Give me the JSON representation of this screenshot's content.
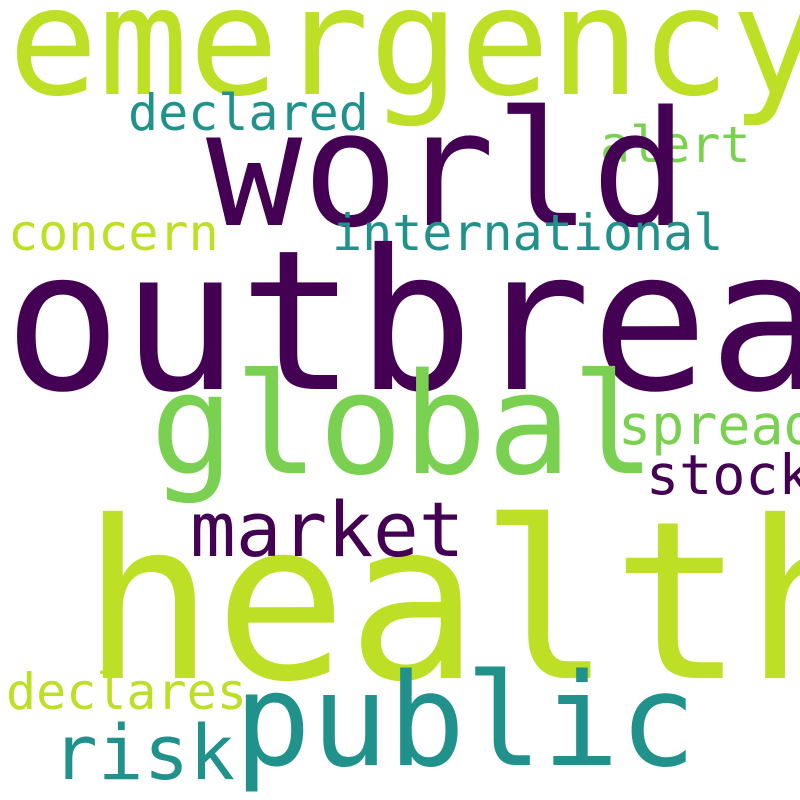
{
  "words": {
    "outbreak": {
      "text": "outbreak",
      "color": "#440154",
      "weight": 1.0
    },
    "health": {
      "text": "health",
      "color": "#bddf26",
      "weight": 0.98
    },
    "emergency": {
      "text": "emergency",
      "color": "#bddf26",
      "weight": 0.72
    },
    "world": {
      "text": "world",
      "color": "#440154",
      "weight": 0.72
    },
    "global": {
      "text": "global",
      "color": "#7ad151",
      "weight": 0.64
    },
    "public": {
      "text": "public",
      "color": "#21918c",
      "weight": 0.58
    },
    "market": {
      "text": "market",
      "color": "#440154",
      "weight": 0.35
    },
    "risk": {
      "text": "risk",
      "color": "#21918c",
      "weight": 0.35
    },
    "spread": {
      "text": "spread",
      "color": "#7ad151",
      "weight": 0.25
    },
    "stock": {
      "text": "stock",
      "color": "#440154",
      "weight": 0.25
    },
    "international": {
      "text": "international",
      "color": "#21918c",
      "weight": 0.23
    },
    "declared": {
      "text": "declared",
      "color": "#21918c",
      "weight": 0.23
    },
    "concern": {
      "text": "concern",
      "color": "#bddf26",
      "weight": 0.23
    },
    "alert": {
      "text": "alert",
      "color": "#7ad151",
      "weight": 0.23
    },
    "declares": {
      "text": "declares",
      "color": "#bddf26",
      "weight": 0.23
    }
  }
}
